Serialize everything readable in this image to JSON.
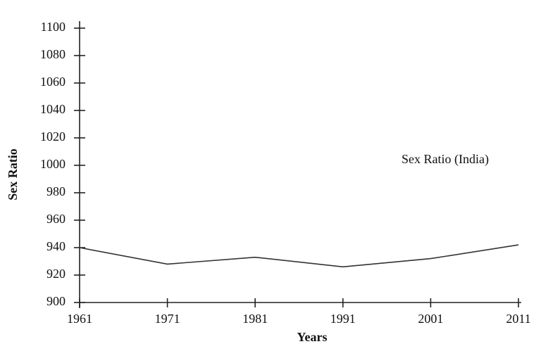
{
  "chart_data": {
    "type": "line",
    "annotation": "Sex Ratio (India)",
    "x_label": "Years",
    "y_label": "Sex Ratio",
    "x": [
      1961,
      1971,
      1981,
      1991,
      2001,
      2011
    ],
    "series": [
      {
        "color": "#333333",
        "values": [
          940,
          928,
          933,
          926,
          932,
          942
        ]
      }
    ],
    "xlim": [
      1961,
      2011
    ],
    "xticks": [
      1961,
      1971,
      1981,
      1991,
      2001,
      2011
    ],
    "ylim": [
      900,
      1100
    ],
    "yticks": [
      900,
      920,
      940,
      960,
      980,
      1000,
      1020,
      1040,
      1060,
      1080,
      1100
    ]
  }
}
